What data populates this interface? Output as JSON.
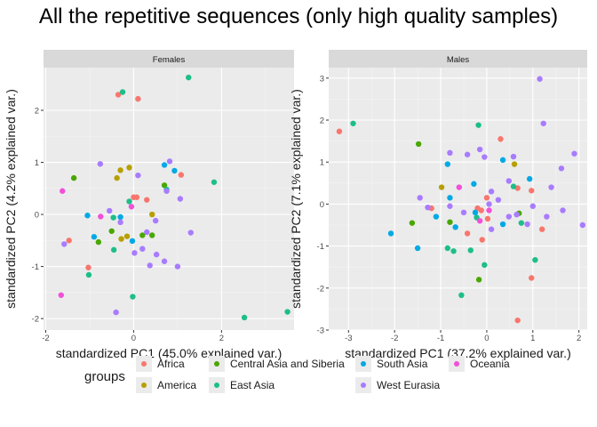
{
  "title": "All the repetitive sequences (only high quality samples)",
  "legend_title": "groups",
  "colors": {
    "Africa": "#F8766D",
    "America": "#B79F00",
    "Central Asia and Siberia": "#49A700",
    "East Asia": "#00BA38",
    "South Asia": "#00A6FF",
    "West Eurasia": "#9B6BFF",
    "Oceania": "#F564E3"
  },
  "legend": [
    {
      "label": "Africa",
      "color": "#F8766D"
    },
    {
      "label": "America",
      "color": "#B79F00"
    },
    {
      "label": "Central Asia and Siberia",
      "color": "#49A700"
    },
    {
      "label": "East Asia",
      "color": "#1DBE8A"
    },
    {
      "label": "South Asia",
      "color": "#00A9E6"
    },
    {
      "label": "West Eurasia",
      "color": "#A87BFF"
    },
    {
      "label": "Oceania",
      "color": "#F34FD8"
    }
  ],
  "chart_data": [
    {
      "type": "scatter",
      "title": "Females",
      "xlabel": "standardized PC1 (45.0% explained var.)",
      "ylabel": "standardized PC2 (4.2% explained var.)",
      "xlim": [
        -2.05,
        3.65
      ],
      "ylim": [
        -2.22,
        2.82
      ],
      "xticks": [
        -2,
        0,
        2
      ],
      "yticks": [
        -2,
        -1,
        0,
        1,
        2
      ],
      "series": [
        {
          "name": "Africa",
          "points": [
            [
              -0.35,
              2.3
            ],
            [
              0.1,
              2.22
            ],
            [
              0.0,
              0.33
            ],
            [
              0.07,
              0.33
            ],
            [
              0.3,
              0.28
            ],
            [
              1.08,
              0.76
            ],
            [
              -1.47,
              -0.5
            ],
            [
              -1.03,
              -1.02
            ]
          ]
        },
        {
          "name": "America",
          "points": [
            [
              -0.3,
              0.85
            ],
            [
              -0.1,
              0.9
            ],
            [
              -0.38,
              0.7
            ],
            [
              0.42,
              0.0
            ],
            [
              -0.15,
              -0.42
            ],
            [
              -0.28,
              -0.47
            ]
          ]
        },
        {
          "name": "Central Asia and Siberia",
          "points": [
            [
              -1.36,
              0.7
            ],
            [
              -0.8,
              -0.53
            ],
            [
              0.7,
              0.56
            ],
            [
              0.2,
              -0.4
            ],
            [
              0.42,
              -0.4
            ],
            [
              -0.5,
              -0.32
            ]
          ]
        },
        {
          "name": "East Asia",
          "points": [
            [
              -0.25,
              2.35
            ],
            [
              1.25,
              2.63
            ],
            [
              1.83,
              0.62
            ],
            [
              0.75,
              0.48
            ],
            [
              -0.1,
              0.25
            ],
            [
              -0.46,
              -0.06
            ],
            [
              -0.45,
              -0.68
            ],
            [
              -1.02,
              -1.16
            ],
            [
              -0.02,
              -1.58
            ],
            [
              2.52,
              -1.98
            ],
            [
              3.5,
              -1.87
            ]
          ]
        },
        {
          "name": "South Asia",
          "points": [
            [
              0.7,
              0.95
            ],
            [
              0.93,
              0.84
            ],
            [
              -1.05,
              -0.02
            ],
            [
              -0.9,
              -0.43
            ],
            [
              -0.3,
              -0.05
            ],
            [
              -0.03,
              -0.51
            ]
          ]
        },
        {
          "name": "West Eurasia",
          "points": [
            [
              -0.76,
              0.97
            ],
            [
              0.82,
              1.02
            ],
            [
              0.1,
              0.75
            ],
            [
              0.75,
              0.45
            ],
            [
              -0.55,
              0.07
            ],
            [
              -0.3,
              -0.15
            ],
            [
              0.5,
              -0.12
            ],
            [
              0.3,
              -0.34
            ],
            [
              1.06,
              0.3
            ],
            [
              -1.58,
              -0.57
            ],
            [
              0.2,
              -0.66
            ],
            [
              0.02,
              -0.74
            ],
            [
              0.52,
              -0.77
            ],
            [
              0.7,
              -0.9
            ],
            [
              0.37,
              -0.98
            ],
            [
              1.0,
              -1.0
            ],
            [
              1.3,
              -0.35
            ],
            [
              -0.4,
              -1.88
            ]
          ]
        },
        {
          "name": "Oceania",
          "points": [
            [
              -1.62,
              0.45
            ],
            [
              -0.75,
              -0.04
            ],
            [
              -0.05,
              0.15
            ],
            [
              -1.65,
              -1.55
            ]
          ]
        }
      ]
    },
    {
      "type": "scatter",
      "title": "Males",
      "xlabel": "standardized PC1 (37.2% explained var.)",
      "ylabel": "standardized PC2 (7.1% explained var.)",
      "xlim": [
        -3.43,
        2.18
      ],
      "ylim": [
        -3.0,
        3.25
      ],
      "xticks": [
        -3,
        -2,
        -1,
        0,
        1,
        2
      ],
      "yticks": [
        -3,
        -2,
        -1,
        0,
        1,
        2,
        3
      ],
      "series": [
        {
          "name": "Africa",
          "points": [
            [
              -3.2,
              1.73
            ],
            [
              0.3,
              1.55
            ],
            [
              0.67,
              0.38
            ],
            [
              0.0,
              0.15
            ],
            [
              -0.2,
              -0.1
            ],
            [
              -0.12,
              -0.15
            ],
            [
              0.02,
              -0.35
            ],
            [
              -1.2,
              -0.1
            ],
            [
              -0.42,
              -0.7
            ],
            [
              -0.1,
              -0.85
            ],
            [
              0.97,
              0.32
            ],
            [
              1.2,
              -0.6
            ],
            [
              0.97,
              -1.76
            ],
            [
              0.67,
              -2.77
            ]
          ]
        },
        {
          "name": "America",
          "points": [
            [
              -0.98,
              0.4
            ],
            [
              0.6,
              0.95
            ]
          ]
        },
        {
          "name": "Central Asia and Siberia",
          "points": [
            [
              -1.48,
              1.43
            ],
            [
              -0.8,
              -0.43
            ],
            [
              -1.62,
              -0.45
            ],
            [
              -0.17,
              -1.8
            ],
            [
              0.7,
              -0.22
            ]
          ]
        },
        {
          "name": "East Asia",
          "points": [
            [
              -2.9,
              1.92
            ],
            [
              -0.18,
              1.88
            ],
            [
              0.58,
              0.42
            ],
            [
              -0.85,
              -1.05
            ],
            [
              -0.72,
              -1.12
            ],
            [
              -0.35,
              -1.1
            ],
            [
              -0.05,
              -1.45
            ],
            [
              -0.55,
              -2.17
            ],
            [
              1.05,
              -1.33
            ],
            [
              -0.22,
              -0.32
            ],
            [
              0.75,
              -0.45
            ]
          ]
        },
        {
          "name": "South Asia",
          "points": [
            [
              -0.28,
              0.48
            ],
            [
              0.35,
              1.05
            ],
            [
              -0.8,
              0.15
            ],
            [
              -0.85,
              0.95
            ],
            [
              -1.1,
              -0.3
            ],
            [
              -2.08,
              -0.7
            ],
            [
              -1.5,
              -1.05
            ],
            [
              -0.25,
              -0.2
            ],
            [
              -0.68,
              -0.55
            ],
            [
              0.35,
              -0.48
            ],
            [
              0.93,
              0.6
            ]
          ]
        },
        {
          "name": "West Eurasia",
          "points": [
            [
              1.15,
              2.98
            ],
            [
              1.23,
              1.92
            ],
            [
              -0.8,
              1.22
            ],
            [
              -0.42,
              1.18
            ],
            [
              -0.15,
              1.3
            ],
            [
              0.58,
              1.13
            ],
            [
              -0.05,
              1.12
            ],
            [
              1.9,
              1.2
            ],
            [
              0.48,
              0.55
            ],
            [
              1.62,
              0.85
            ],
            [
              1.4,
              0.4
            ],
            [
              0.1,
              0.3
            ],
            [
              0.25,
              0.1
            ],
            [
              0.05,
              0.0
            ],
            [
              -1.45,
              0.15
            ],
            [
              -0.8,
              -0.05
            ],
            [
              0.65,
              -0.25
            ],
            [
              0.48,
              -0.3
            ],
            [
              1.0,
              -0.05
            ],
            [
              1.65,
              -0.15
            ],
            [
              0.88,
              -0.48
            ],
            [
              2.08,
              -0.5
            ],
            [
              1.3,
              -0.3
            ],
            [
              -0.5,
              -0.2
            ],
            [
              -1.28,
              -0.08
            ],
            [
              0.1,
              -0.6
            ]
          ]
        },
        {
          "name": "Oceania",
          "points": [
            [
              -0.6,
              0.4
            ],
            [
              0.05,
              -0.15
            ],
            [
              -0.15,
              -0.4
            ]
          ]
        }
      ]
    }
  ]
}
